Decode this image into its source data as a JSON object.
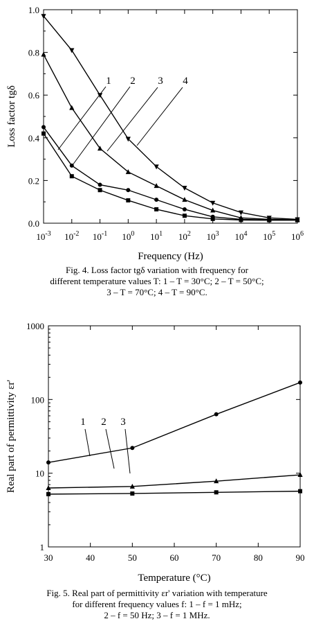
{
  "chart_data": [
    {
      "type": "line",
      "xlabel": "Frequency (Hz)",
      "ylabel": "Loss factor tgδ",
      "x_scale": "log",
      "xlim": [
        0.001,
        1000000
      ],
      "ylim": [
        0.0,
        1.0
      ],
      "x": [
        0.001,
        0.01,
        0.1,
        1,
        10,
        100,
        1000,
        10000,
        100000,
        1000000
      ],
      "x_tick_exponents": [
        "-3",
        "-2",
        "-1",
        "0",
        "1",
        "2",
        "3",
        "4",
        "5",
        "6"
      ],
      "y_ticks": [
        "0.0",
        "0.2",
        "0.4",
        "0.6",
        "0.8",
        "1.0"
      ],
      "series": [
        {
          "name": "1",
          "marker": "square",
          "values": [
            0.42,
            0.22,
            0.155,
            0.107,
            0.065,
            0.035,
            0.02,
            0.015,
            0.014,
            0.014
          ]
        },
        {
          "name": "2",
          "marker": "circle",
          "values": [
            0.45,
            0.27,
            0.18,
            0.155,
            0.11,
            0.065,
            0.03,
            0.018,
            0.015,
            0.015
          ]
        },
        {
          "name": "3",
          "marker": "triangle-up",
          "values": [
            0.79,
            0.54,
            0.35,
            0.24,
            0.175,
            0.11,
            0.06,
            0.025,
            0.018,
            0.016
          ]
        },
        {
          "name": "4",
          "marker": "triangle-down",
          "values": [
            0.97,
            0.81,
            0.6,
            0.395,
            0.265,
            0.165,
            0.095,
            0.05,
            0.025,
            0.018
          ]
        }
      ],
      "caption": "Fig. 4.  Loss factor tgδ variation with frequency for\ndifferent temperature values T: 1 – T = 30°C; 2 – T = 50°C;\n3 – T = 70°C; 4 – T = 90°C."
    },
    {
      "type": "line",
      "xlabel": "Temperature (°C)",
      "ylabel": "Real part of permittivity εr'",
      "y_scale": "log",
      "xlim": [
        30,
        90
      ],
      "ylim": [
        1,
        1000
      ],
      "x": [
        30,
        50,
        70,
        90
      ],
      "x_ticks": [
        "30",
        "40",
        "50",
        "60",
        "70",
        "80",
        "90"
      ],
      "y_ticks": [
        "1",
        "10",
        "100",
        "1000"
      ],
      "series": [
        {
          "name": "1",
          "marker": "circle",
          "values": [
            14,
            22,
            63,
            170
          ]
        },
        {
          "name": "2",
          "marker": "triangle-up",
          "values": [
            6.3,
            6.6,
            7.8,
            9.5
          ]
        },
        {
          "name": "3",
          "marker": "square",
          "values": [
            5.2,
            5.3,
            5.5,
            5.7
          ]
        }
      ],
      "caption": "Fig. 5.  Real part of permittivity εr' variation with temperature\nfor different frequency values f: 1 – f = 1 mHz;\n2 – f = 50 Hz; 3 – f = 1 MHz."
    }
  ]
}
